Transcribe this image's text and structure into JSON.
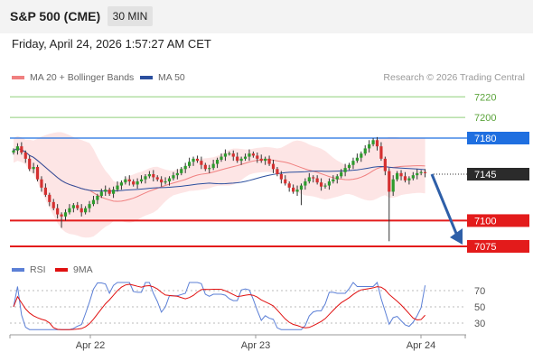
{
  "header": {
    "symbol": "S&P 500 (CME)",
    "timeframe": "30 MIN",
    "datetime": "Friday, April 24, 2026 1:57:27 AM CET"
  },
  "legend": {
    "ma20": "MA 20 + Bollinger Bands",
    "ma50": "MA 50",
    "rsi": "RSI",
    "rsi_ma": "9MA"
  },
  "copyright": "Research © 2026 Trading Central",
  "colors": {
    "ma20": "#f08080",
    "ma50": "#2b4f9e",
    "rsi": "#5b7fd6",
    "rsi_ma": "#e01010",
    "up": "#2d9b2d",
    "down": "#d43030",
    "resistance_blue": "#1f6fe0",
    "support_red": "#e31b1b",
    "target_green": "#8fcf7a"
  },
  "chart_data": [
    {
      "type": "candlestick",
      "title": "",
      "levels": [
        {
          "value": 7220,
          "label": "7220",
          "style": "thin-green"
        },
        {
          "value": 7200,
          "label": "7200",
          "style": "thin-green"
        },
        {
          "value": 7180,
          "label": "7180",
          "style": "blue-box"
        },
        {
          "value": 7145,
          "label": "7145",
          "style": "dark-box-dotted",
          "current": true
        },
        {
          "value": 7100,
          "label": "7100",
          "style": "red-box"
        },
        {
          "value": 7075,
          "label": "7075",
          "style": "red-box"
        }
      ],
      "ylim": [
        7070,
        7230
      ],
      "x_labels": [
        "Apr 22",
        "Apr 23",
        "Apr 24"
      ],
      "arrow": {
        "from": 7145,
        "to": 7075,
        "direction": "down"
      },
      "series_close": [
        7168,
        7172,
        7166,
        7160,
        7150,
        7152,
        7140,
        7132,
        7125,
        7118,
        7112,
        7106,
        7104,
        7108,
        7112,
        7115,
        7112,
        7108,
        7112,
        7116,
        7120,
        7124,
        7128,
        7130,
        7126,
        7130,
        7134,
        7137,
        7140,
        7138,
        7135,
        7138,
        7140,
        7143,
        7145,
        7142,
        7140,
        7137,
        7138,
        7141,
        7144,
        7146,
        7150,
        7153,
        7157,
        7160,
        7158,
        7154,
        7150,
        7151,
        7155,
        7159,
        7162,
        7165,
        7165,
        7162,
        7158,
        7160,
        7162,
        7165,
        7163,
        7160,
        7158,
        7160,
        7155,
        7150,
        7145,
        7140,
        7136,
        7132,
        7128,
        7130,
        7134,
        7138,
        7142,
        7141,
        7137,
        7133,
        7134,
        7138,
        7140,
        7143,
        7147,
        7151,
        7154,
        7158,
        7161,
        7165,
        7170,
        7174,
        7178,
        7172,
        7160,
        7148,
        7128,
        7140,
        7146,
        7143,
        7139,
        7141,
        7144,
        7146,
        7147,
        7146
      ]
    },
    {
      "type": "line",
      "name": "RSI",
      "ticks": [
        70,
        50,
        30
      ],
      "ylim": [
        10,
        90
      ]
    }
  ]
}
